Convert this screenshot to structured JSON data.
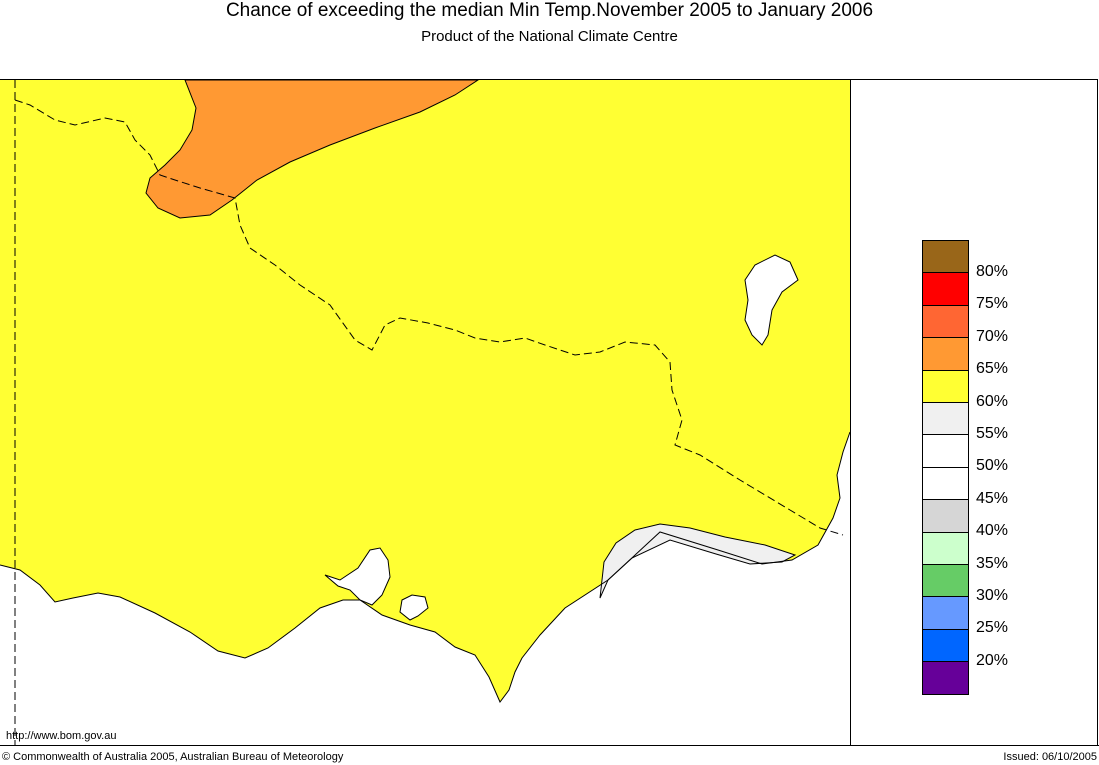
{
  "header": {
    "title": "Chance of exceeding the median Min Temp.November 2005 to January 2006",
    "subtitle": "Product of the National Climate Centre"
  },
  "map": {
    "land_color": "#ffff33",
    "water_color": "#ffffff",
    "zones": [
      {
        "name": "65-70%",
        "color": "#ff9933"
      },
      {
        "name": "55-60%",
        "color": "#f0f0f0"
      }
    ]
  },
  "legend": {
    "swatches": [
      {
        "color": "#996619"
      },
      {
        "color": "#ff0000"
      },
      {
        "color": "#ff6633"
      },
      {
        "color": "#ff9933"
      },
      {
        "color": "#ffff33"
      },
      {
        "color": "#f0f0f0"
      },
      {
        "color": "#ffffff"
      },
      {
        "color": "#ffffff"
      },
      {
        "color": "#d6d6d6"
      },
      {
        "color": "#ccffcc"
      },
      {
        "color": "#66cc66"
      },
      {
        "color": "#6699ff"
      },
      {
        "color": "#0066ff"
      },
      {
        "color": "#660099"
      }
    ],
    "labels": [
      "80%",
      "75%",
      "70%",
      "65%",
      "60%",
      "55%",
      "50%",
      "45%",
      "40%",
      "35%",
      "30%",
      "25%",
      "20%"
    ]
  },
  "footer": {
    "url": "http://www.bom.gov.au",
    "copyright": "© Commonwealth of Australia 2005, Australian Bureau of Meteorology",
    "issued": "Issued: 06/10/2005"
  }
}
